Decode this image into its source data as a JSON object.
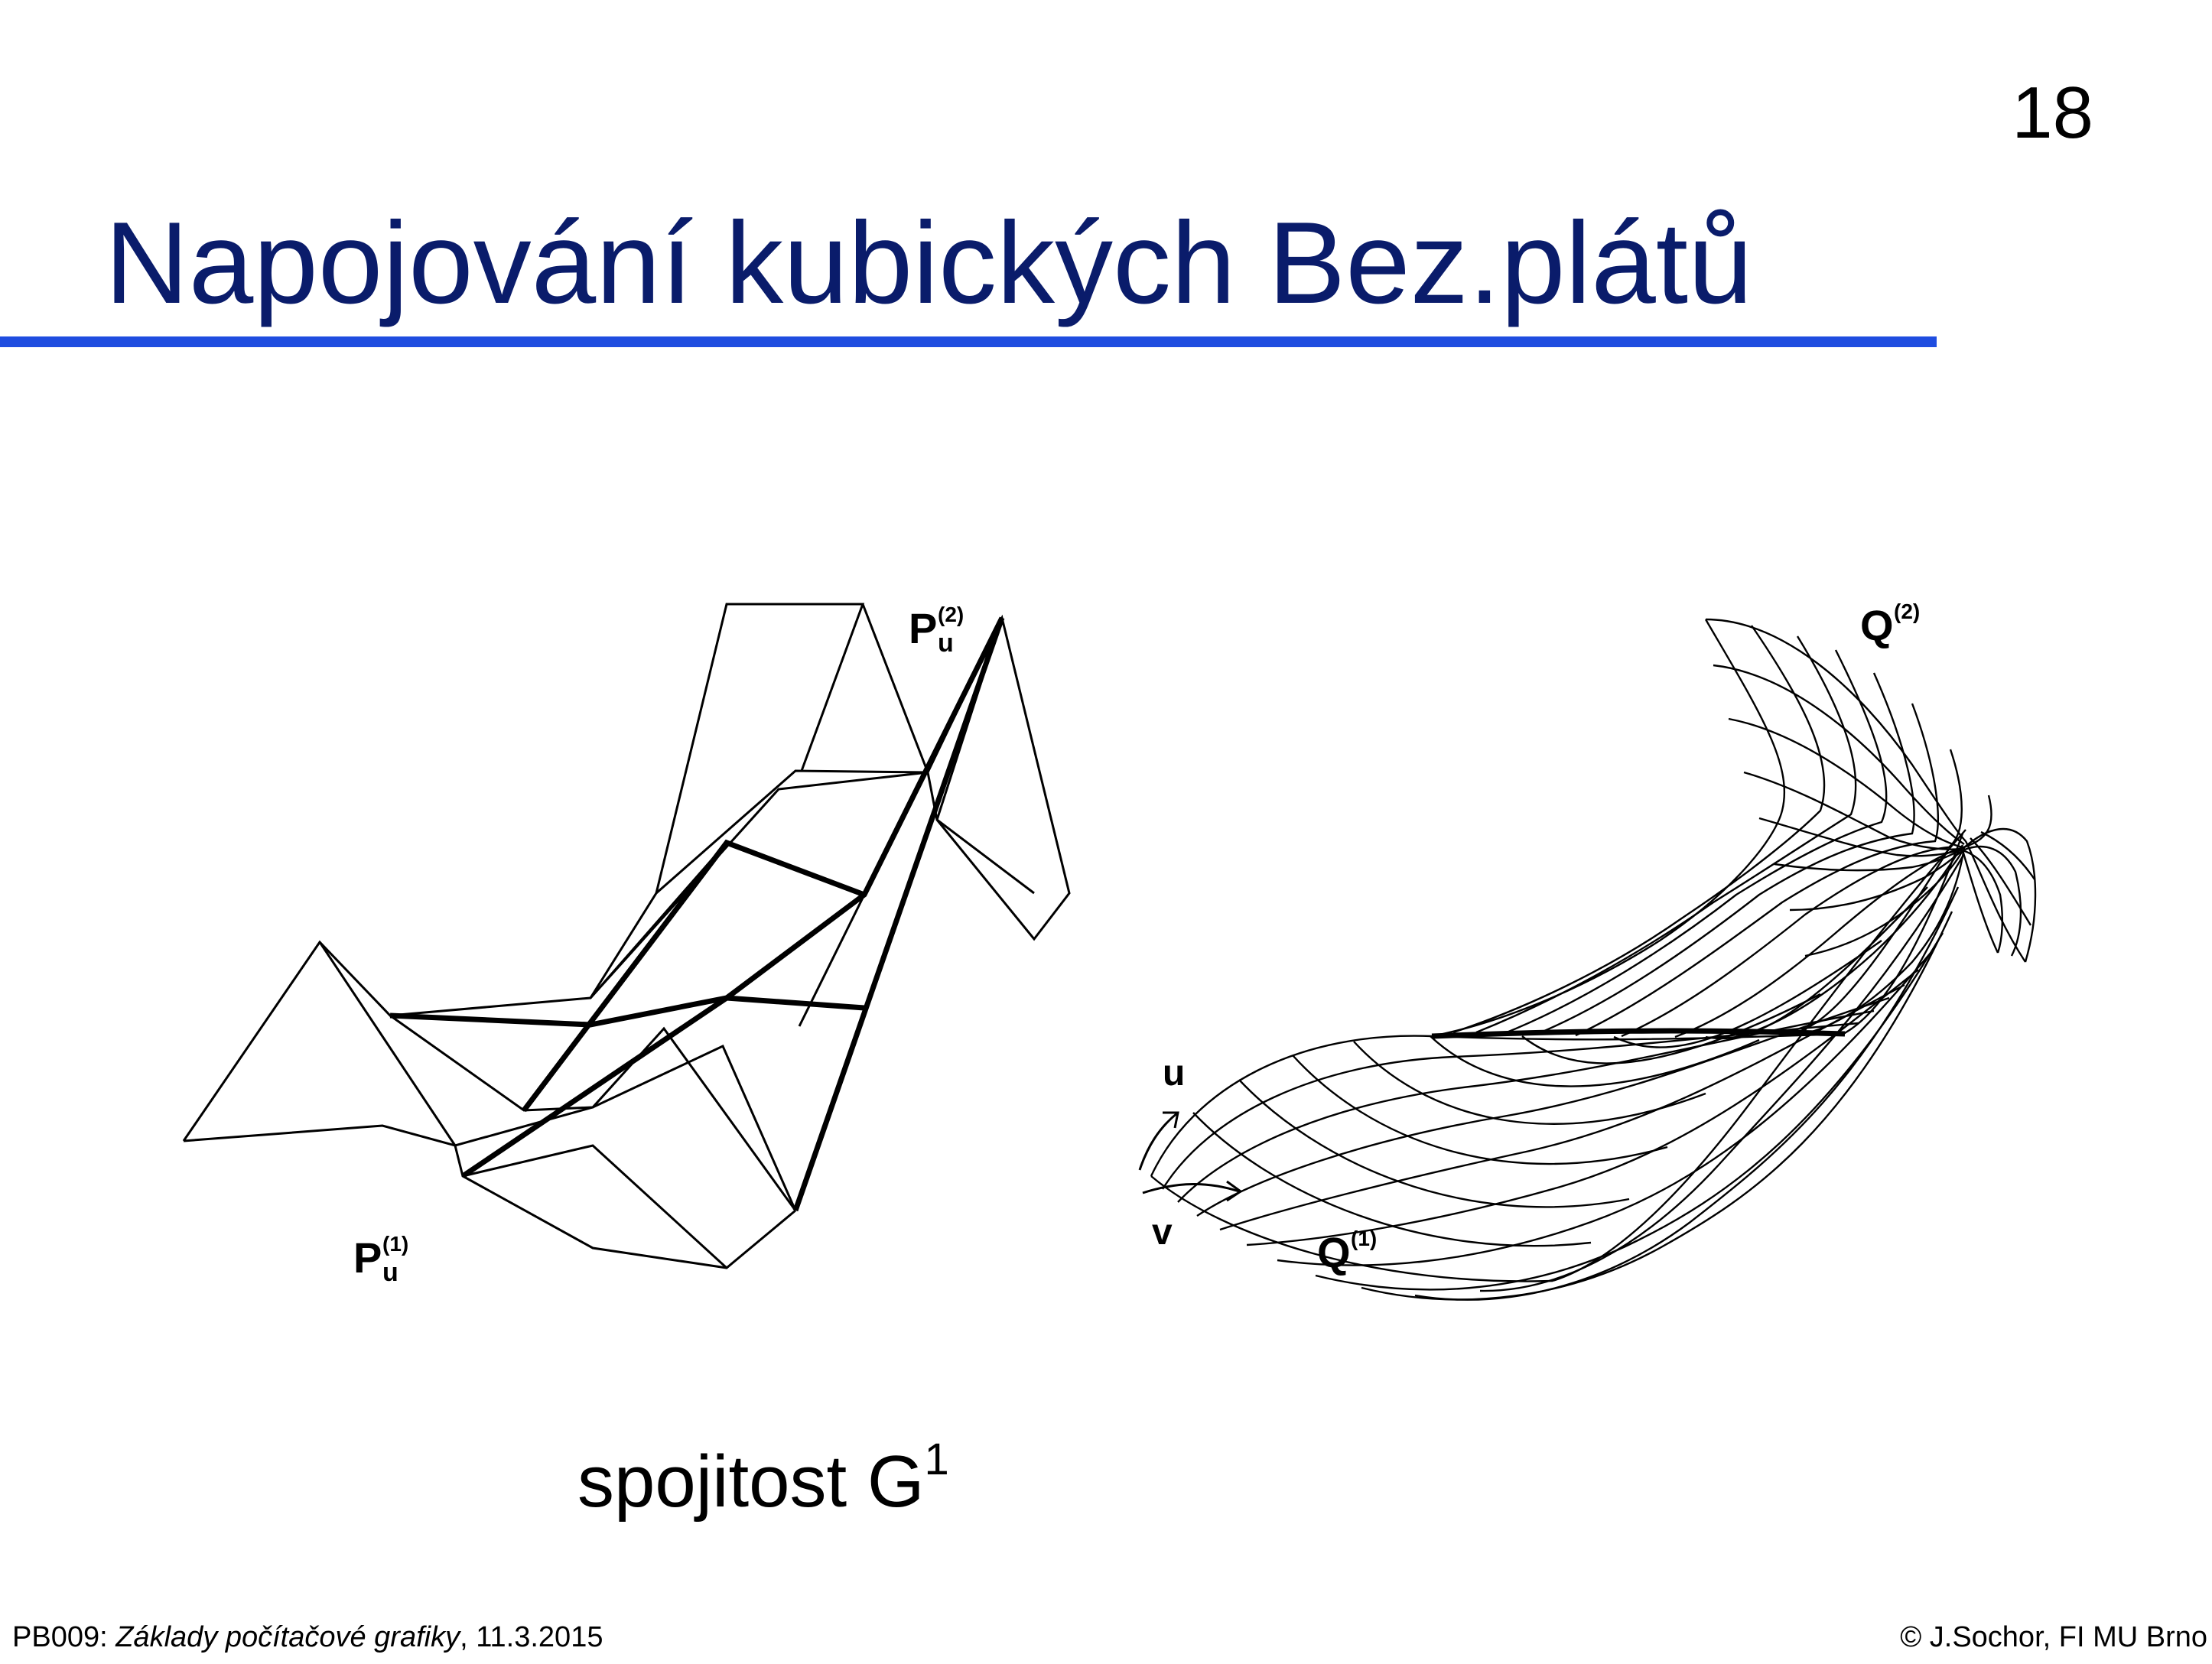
{
  "slide_number": "18",
  "title": "Napojování kubických Bez.plátů",
  "figure": {
    "label_p1": {
      "base": "P",
      "sup": "(1)",
      "sub": "u"
    },
    "label_p2": {
      "base": "P",
      "sup": "(2)",
      "sub": "u"
    },
    "label_q1": {
      "base": "Q",
      "sup": "(1)"
    },
    "label_q2": {
      "base": "Q",
      "sup": "(2)"
    },
    "axis_u": "u",
    "axis_v": "v"
  },
  "caption": {
    "text": "spojitost G",
    "superscript": "1"
  },
  "footer": {
    "course": "PB009: ",
    "course_title": "Základy počítačové grafiky",
    "date": ", 11.3.2015",
    "copyright": "© J.Sochor, FI MU Brno"
  },
  "colors": {
    "title": "#0a1c6b",
    "rule": "#1f4de0"
  }
}
